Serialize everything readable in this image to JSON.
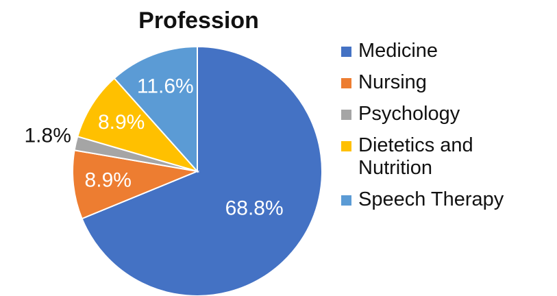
{
  "chart_data": {
    "type": "pie",
    "title": "Profession",
    "categories": [
      "Medicine",
      "Nursing",
      "Psychology",
      "Dietetics and Nutrition",
      "Speech Therapy"
    ],
    "values": [
      68.8,
      8.9,
      1.8,
      8.9,
      11.6
    ],
    "value_labels": [
      "68.8%",
      "8.9%",
      "1.8%",
      "8.9%",
      "11.6%"
    ],
    "colors": [
      "#4472c4",
      "#ed7d31",
      "#a5a5a5",
      "#ffc000",
      "#5b9bd5"
    ],
    "legend": "right"
  }
}
